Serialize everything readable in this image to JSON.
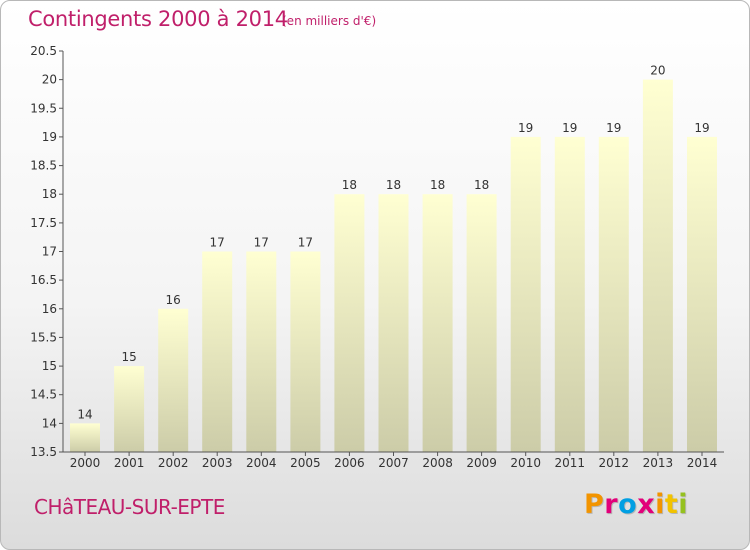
{
  "header": {
    "title": "Contingents 2000 à 2014",
    "subtitle": "(en milliers d'€)"
  },
  "footer": {
    "place": "CHâTEAU-SUR-EPTE",
    "logo_text": "Proxiti",
    "logo_colors": [
      "#f29400",
      "#e2007a",
      "#009fe3",
      "#e2007a",
      "#f29400",
      "#f2c300",
      "#95c11f"
    ]
  },
  "chart_data": {
    "type": "bar",
    "title": "Contingents 2000 à 2014",
    "subtitle": "(en milliers d'€)",
    "xlabel": "",
    "ylabel": "",
    "categories": [
      "2000",
      "2001",
      "2002",
      "2003",
      "2004",
      "2005",
      "2006",
      "2007",
      "2008",
      "2009",
      "2010",
      "2011",
      "2012",
      "2013",
      "2014"
    ],
    "values": [
      14,
      15,
      16,
      17,
      17,
      17,
      18,
      18,
      18,
      18,
      19,
      19,
      19,
      20,
      19
    ],
    "data_labels": [
      "14",
      "15",
      "16",
      "17",
      "17",
      "17",
      "18",
      "18",
      "18",
      "18",
      "19",
      "19",
      "19",
      "20",
      "19"
    ],
    "ylim": [
      13.5,
      20.5
    ],
    "yticks": [
      13.5,
      14,
      14.5,
      15,
      15.5,
      16,
      16.5,
      17,
      17.5,
      18,
      18.5,
      19,
      19.5,
      20,
      20.5
    ],
    "ytick_labels": [
      "13.5",
      "14",
      "14.5",
      "15",
      "15.5",
      "16",
      "16.5",
      "17",
      "17.5",
      "18",
      "18.5",
      "19",
      "19.5",
      "20",
      "20.5"
    ],
    "grid": false,
    "legend": "none",
    "colors": {
      "bar_top": "#ffffd2",
      "bar_bottom": "#cccca8",
      "axis": "#555555",
      "text": "#333333"
    }
  }
}
